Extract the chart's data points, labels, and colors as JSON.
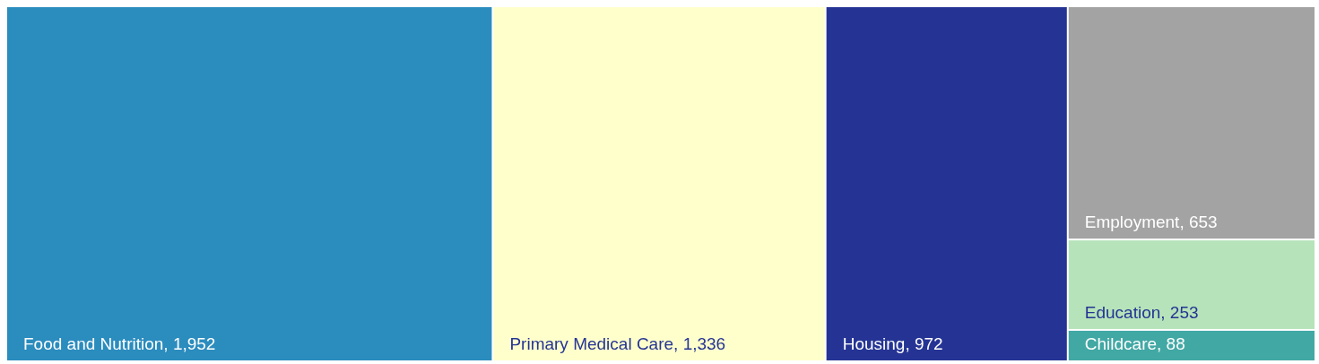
{
  "chart_data": {
    "type": "other",
    "categories": [
      "Food and Nutrition",
      "Primary Medical Care",
      "Housing",
      "Employment",
      "Education",
      "Childcare"
    ],
    "values": [
      1952,
      1336,
      972,
      653,
      253,
      88
    ],
    "colors": [
      "#2b8cbe",
      "#ffffcc",
      "#253494",
      "#a3a3a3",
      "#b6e3b9",
      "#41a8a4"
    ],
    "value_labels": [
      ", 1,952",
      ", 1,336",
      ", 972",
      ", 653",
      ", 253",
      ", 88"
    ]
  }
}
